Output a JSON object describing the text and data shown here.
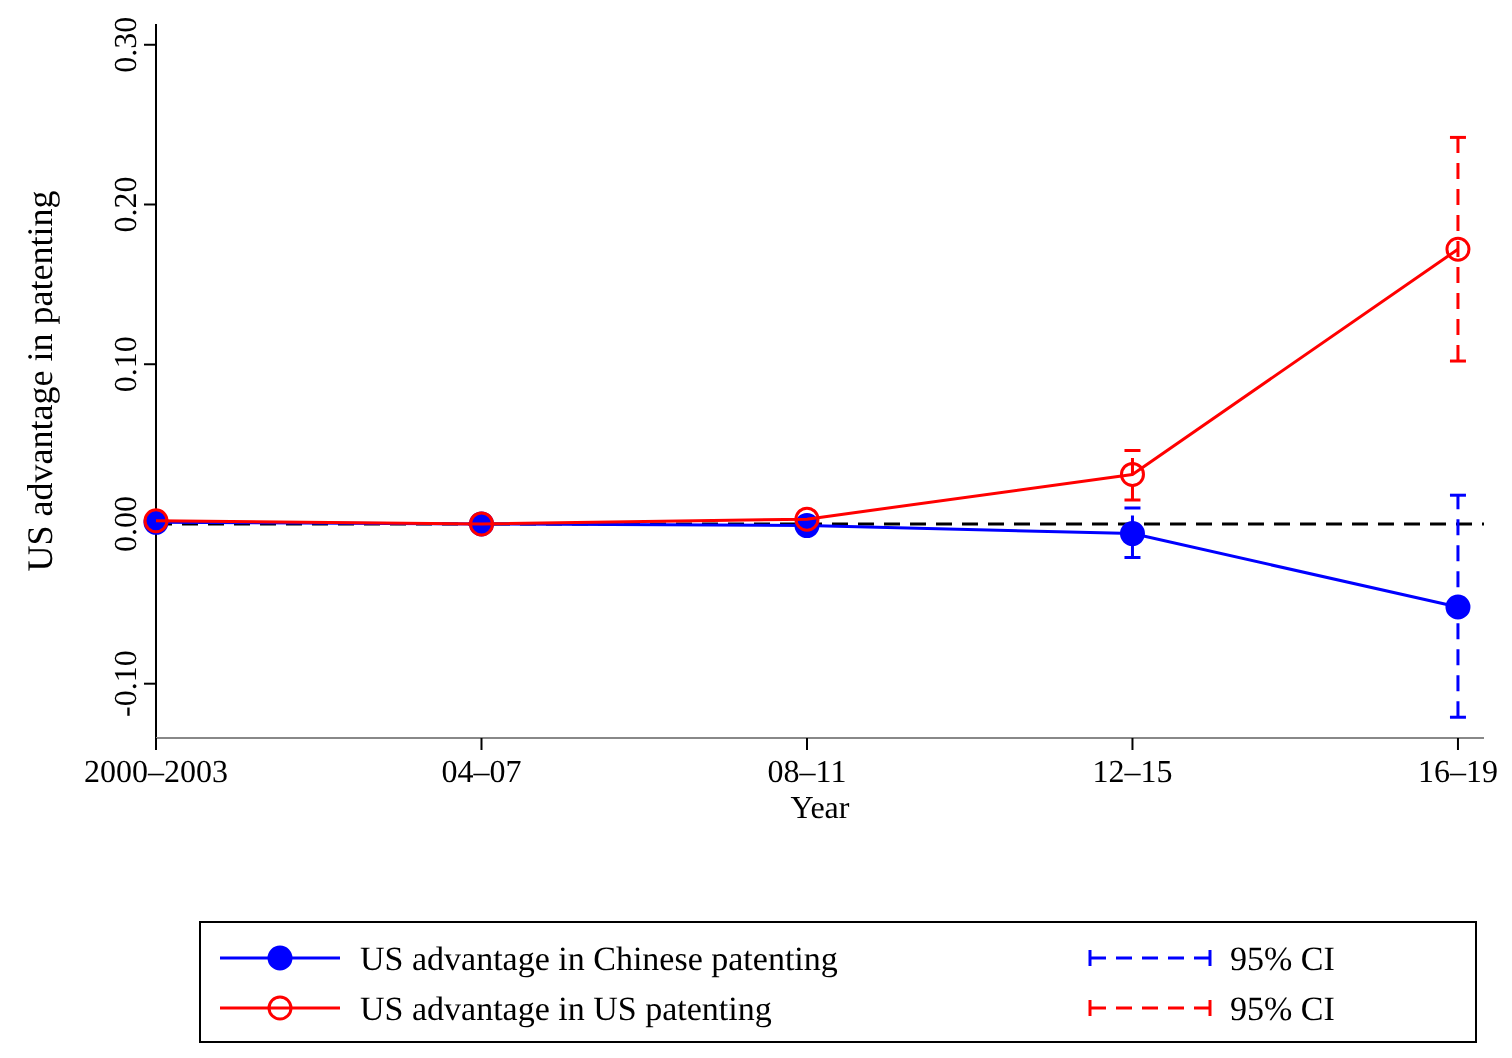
{
  "chart_data": {
    "type": "line",
    "xlabel": "Year",
    "ylabel": "US advantage in patenting",
    "categories": [
      "2000–2003",
      "04–07",
      "08–11",
      "12–15",
      "16–19"
    ],
    "ylim": [
      -0.134,
      0.313
    ],
    "yticks": [
      {
        "value": -0.1,
        "label": "-0.10"
      },
      {
        "value": 0,
        "label": "0.00"
      },
      {
        "value": 0.1,
        "label": "0.10"
      },
      {
        "value": 0.2,
        "label": "0.20"
      },
      {
        "value": 0.3,
        "label": "0.30"
      }
    ],
    "series": [
      {
        "name": "US advantage in Chinese patenting",
        "color": "#0000ff",
        "marker": "circle",
        "values": [
          0.001,
          0.0,
          -0.001,
          -0.006,
          -0.052
        ],
        "errors": [
          null,
          null,
          null,
          [
            -0.021,
            0.01
          ],
          [
            -0.121,
            0.018
          ]
        ]
      },
      {
        "name": "US advantage in US patenting",
        "color": "#ff0000",
        "marker": "circle",
        "values": [
          0.002,
          0.0,
          0.003,
          0.031,
          0.172
        ],
        "errors": [
          null,
          null,
          null,
          [
            0.015,
            0.046
          ],
          [
            0.102,
            0.242
          ]
        ]
      }
    ],
    "ref_lines": [
      {
        "axis": "y",
        "value": 0,
        "color": "#000000",
        "line_style": "dashed"
      }
    ],
    "annotations": [
      "95% CI",
      "95% CI"
    ],
    "legend": "bottom",
    "grid": false
  }
}
